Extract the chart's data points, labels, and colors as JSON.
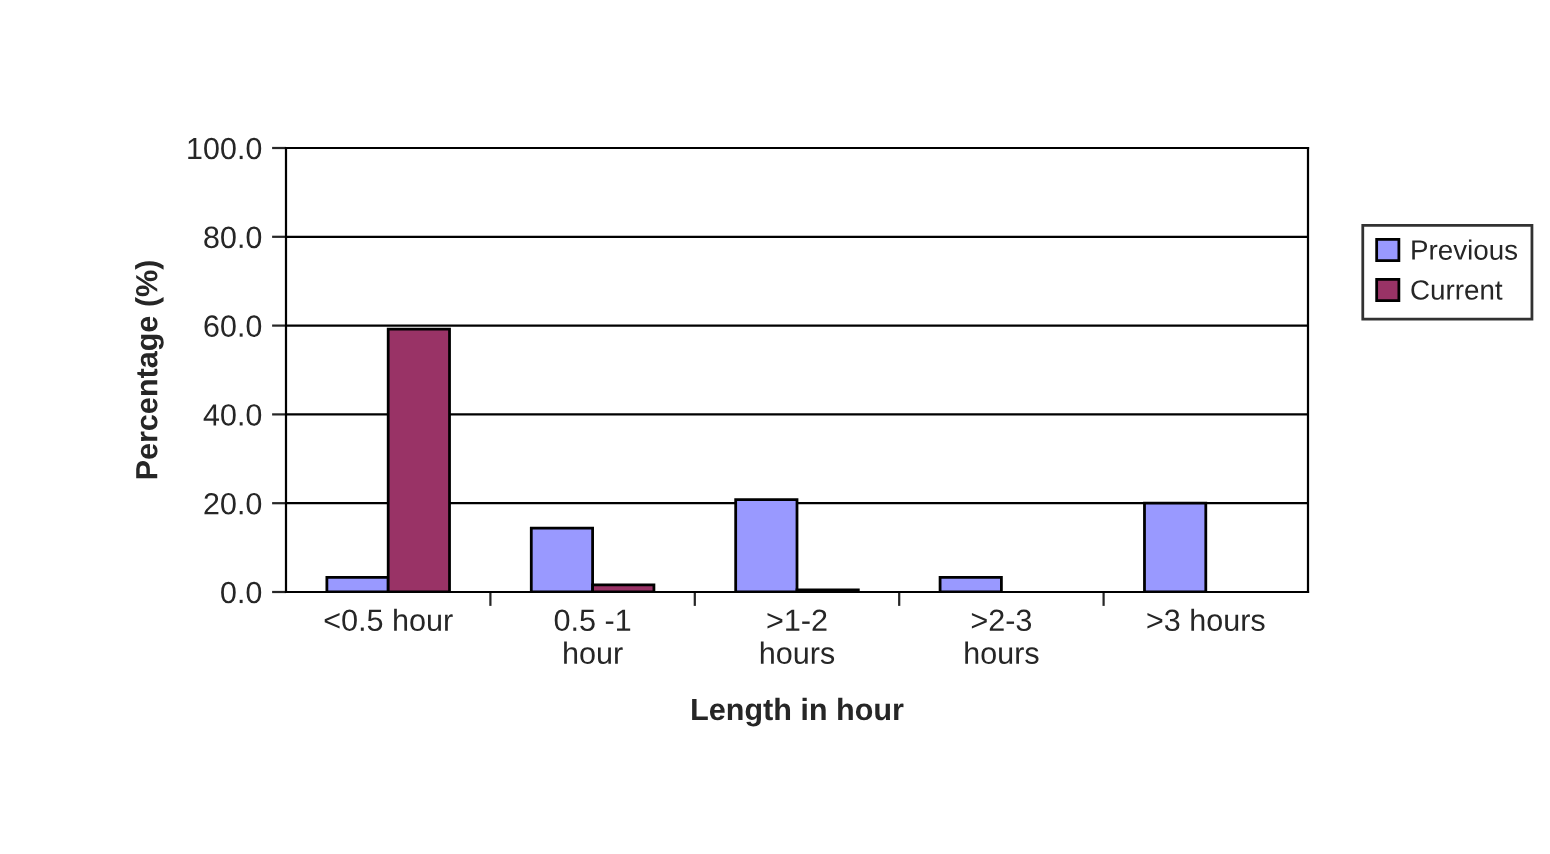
{
  "chart_data": {
    "type": "bar",
    "xlabel": "Length in hour",
    "ylabel": "Percentage (%)",
    "categories": [
      "<0.5 hour",
      "0.5 -1\nhour",
      ">1-2\nhours",
      ">2-3\nhours",
      ">3 hours"
    ],
    "series": [
      {
        "name": "Previous",
        "color": "#9999ff",
        "values": [
          3.3,
          14.4,
          20.8,
          3.3,
          20.0
        ]
      },
      {
        "name": "Current",
        "color": "#993366",
        "values": [
          59.2,
          1.6,
          0.5,
          null,
          null
        ]
      }
    ],
    "ylim": [
      0,
      100
    ],
    "yticks": [
      {
        "value": 0,
        "label": "0.0"
      },
      {
        "value": 20,
        "label": "20.0"
      },
      {
        "value": 40,
        "label": "40.0"
      },
      {
        "value": 60,
        "label": "60.0"
      },
      {
        "value": 80,
        "label": "80.0"
      },
      {
        "value": 100,
        "label": "100.0"
      }
    ],
    "grid": "y",
    "legend": "right"
  }
}
